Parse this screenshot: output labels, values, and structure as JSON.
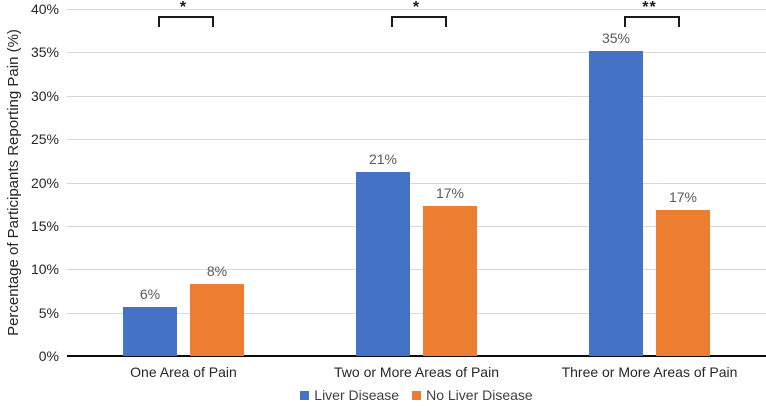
{
  "chart_data": {
    "type": "bar",
    "title": "",
    "xlabel": "",
    "ylabel": "Percentage of Participants Reporting Pain (%)",
    "categories": [
      "One Area of Pain",
      "Two or More Areas of Pain",
      "Three or More Areas of Pain"
    ],
    "series": [
      {
        "name": "Liver Disease",
        "color": "#4472C4",
        "values": [
          5.6,
          21.2,
          35.2
        ],
        "labels": [
          "6%",
          "21%",
          "35%"
        ]
      },
      {
        "name": "No Liver Disease",
        "color": "#ED7D31",
        "values": [
          8.3,
          17.3,
          16.8
        ],
        "labels": [
          "8%",
          "17%",
          "17%"
        ]
      }
    ],
    "ylim": [
      0,
      40
    ],
    "ytick_step": 5,
    "ytick_labels": [
      "0%",
      "5%",
      "10%",
      "15%",
      "20%",
      "25%",
      "30%",
      "35%",
      "40%"
    ],
    "grid": true,
    "legend_position": "bottom",
    "significance": [
      {
        "category_index": 0,
        "label": "*"
      },
      {
        "category_index": 1,
        "label": "*"
      },
      {
        "category_index": 2,
        "label": "**"
      }
    ],
    "colors": {
      "gridline": "#D9D9D9",
      "axis_line": "#0d0d0d",
      "tick_text": "#262626",
      "value_text": "#595959",
      "bracket": "#1a1a1a"
    }
  }
}
